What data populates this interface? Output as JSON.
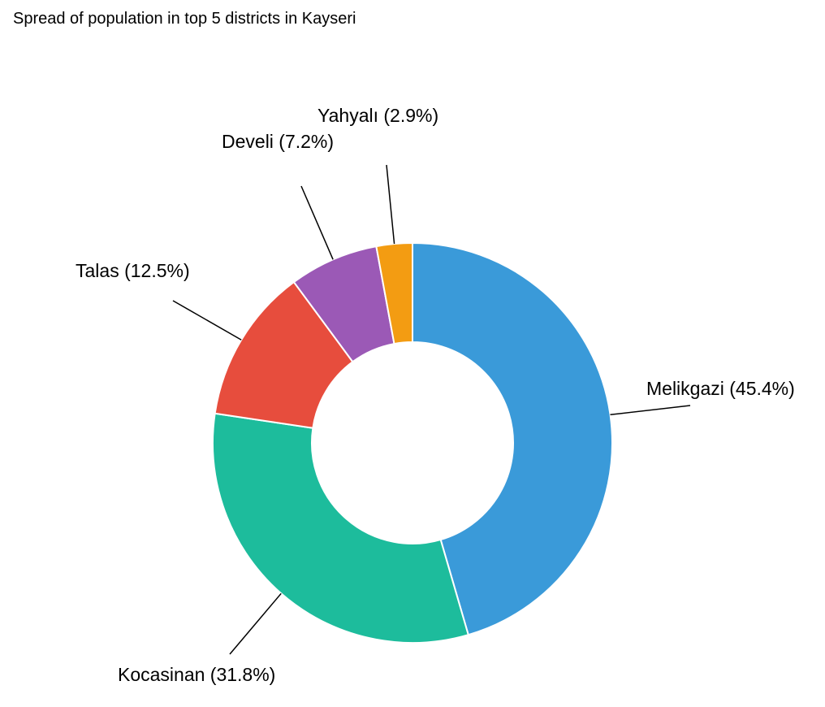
{
  "chart_data": {
    "type": "pie",
    "variant": "donut",
    "title": "Spread of population in top 5 districts in Kayseri",
    "slices": [
      {
        "label": "Melikgazi (45.4%)",
        "value": 45.4,
        "color": "#3a9ad9"
      },
      {
        "label": "Kocasinan (31.8%)",
        "value": 31.8,
        "color": "#1dbc9c"
      },
      {
        "label": "Talas (12.5%)",
        "value": 12.5,
        "color": "#e74d3d"
      },
      {
        "label": "Develi (7.2%)",
        "value": 7.2,
        "color": "#9b59b6"
      },
      {
        "label": "Yahyalı (2.9%)",
        "value": 2.9,
        "color": "#f39c12"
      }
    ],
    "legend": "none",
    "start_angle": "top",
    "direction": "clockwise"
  }
}
